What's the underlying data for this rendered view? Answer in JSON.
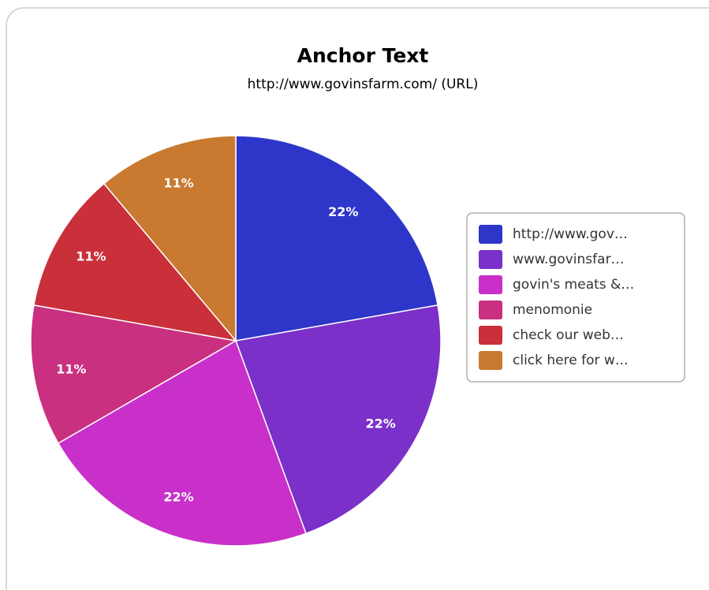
{
  "chart_data": {
    "type": "pie",
    "title": "Anchor Text",
    "subtitle": "http://www.govinsfarm.com/ (URL)",
    "categories": [
      "http://www.gov…",
      "www.govinsfar…",
      "govin's meats &…",
      "menomonie",
      "check our web…",
      "click here for w…"
    ],
    "values": [
      22,
      22,
      22,
      11,
      11,
      11
    ],
    "value_labels": [
      "22%",
      "22%",
      "22%",
      "11%",
      "11%",
      "11%"
    ],
    "colors": [
      "#2e36c9",
      "#7a30c9",
      "#c930c9",
      "#c9307f",
      "#c9303a",
      "#c97a30"
    ],
    "legend": "right"
  }
}
